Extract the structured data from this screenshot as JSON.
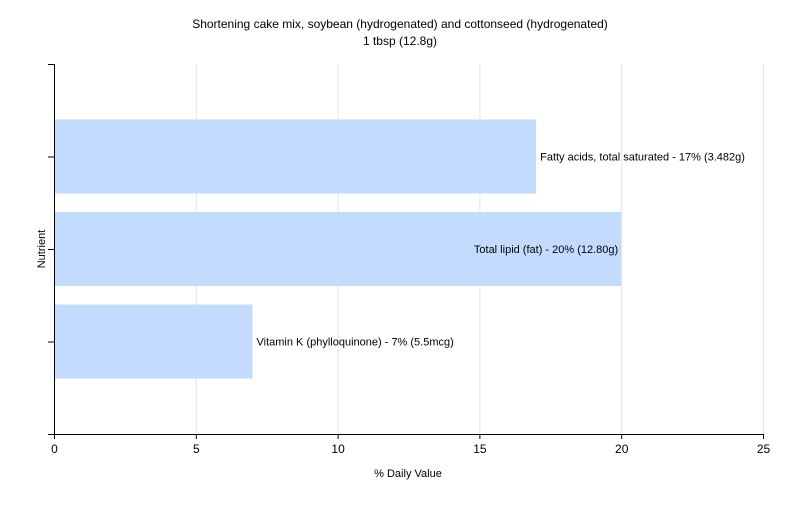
{
  "chart_data": {
    "type": "bar",
    "orientation": "horizontal",
    "title": "Shortening cake mix, soybean (hydrogenated) and cottonseed (hydrogenated)",
    "subtitle": "1 tbsp (12.8g)",
    "xlabel": "% Daily Value",
    "ylabel": "Nutrient",
    "xlim": [
      0,
      25
    ],
    "xticks": [
      0,
      5,
      10,
      15,
      20,
      25
    ],
    "grid": true,
    "legend": "none",
    "bar_color": "#c3dbff",
    "categories": [
      "Fatty acids, total saturated",
      "Total lipid (fat)",
      "Vitamin K (phylloquinone)"
    ],
    "values": [
      17,
      20,
      7
    ],
    "data_labels": [
      "Fatty acids, total saturated - 17% (3.482g)",
      "Total lipid (fat) - 20% (12.80g)",
      "Vitamin K (phylloquinone) - 7% (5.5mcg)"
    ]
  }
}
